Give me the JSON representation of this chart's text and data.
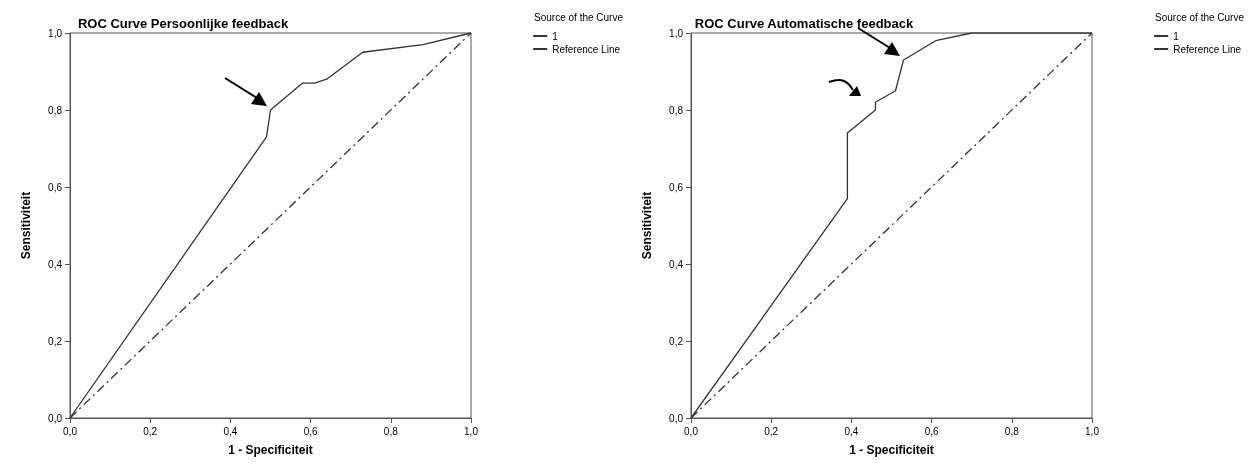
{
  "chart_data": [
    {
      "type": "line",
      "title": "ROC Curve Persoonlijke feedback",
      "xlabel": "1 - Specificiteit",
      "ylabel": "Sensitiviteit",
      "legend_title": "Source of the Curve",
      "legend": "top right",
      "grid": false,
      "marker": "none",
      "xlim": [
        0,
        1
      ],
      "ylim": [
        0,
        1
      ],
      "xticks": [
        {
          "value": 0,
          "label": "0,0"
        },
        {
          "value": 0.2,
          "label": "0,2"
        },
        {
          "value": 0.4,
          "label": "0,4"
        },
        {
          "value": 0.6,
          "label": "0,6"
        },
        {
          "value": 0.8,
          "label": "0,8"
        },
        {
          "value": 1,
          "label": "1,0"
        }
      ],
      "yticks": [
        {
          "value": 0,
          "label": "0,0"
        },
        {
          "value": 0.2,
          "label": "0,2"
        },
        {
          "value": 0.4,
          "label": "0,4"
        },
        {
          "value": 0.6,
          "label": "0,6"
        },
        {
          "value": 0.8,
          "label": "0,8"
        },
        {
          "value": 1,
          "label": "1,0"
        }
      ],
      "series": [
        {
          "name": "1",
          "color": "#333333",
          "line_style": "solid",
          "x": [
            0,
            0.49,
            0.5,
            0.58,
            0.61,
            0.64,
            0.73,
            0.88,
            1
          ],
          "values": [
            0,
            0.73,
            0.8,
            0.87,
            0.87,
            0.88,
            0.95,
            0.97,
            1
          ]
        },
        {
          "name": "Reference Line",
          "color": "#333333",
          "line_style": "dashed",
          "x": [
            0,
            1
          ],
          "values": [
            0,
            1
          ]
        }
      ]
    },
    {
      "type": "line",
      "title": "ROC Curve Automatische feedback",
      "xlabel": "1 - Specificiteit",
      "ylabel": "Sensitiviteit",
      "legend_title": "Source of the Curve",
      "legend": "top right",
      "grid": false,
      "marker": "none",
      "xlim": [
        0,
        1
      ],
      "ylim": [
        0,
        1
      ],
      "xticks": [
        {
          "value": 0,
          "label": "0,0"
        },
        {
          "value": 0.2,
          "label": "0,2"
        },
        {
          "value": 0.4,
          "label": "0,4"
        },
        {
          "value": 0.6,
          "label": "0,6"
        },
        {
          "value": 0.8,
          "label": "0,8"
        },
        {
          "value": 1,
          "label": "1,0"
        }
      ],
      "yticks": [
        {
          "value": 0,
          "label": "0,0"
        },
        {
          "value": 0.2,
          "label": "0,2"
        },
        {
          "value": 0.4,
          "label": "0,4"
        },
        {
          "value": 0.6,
          "label": "0,6"
        },
        {
          "value": 0.8,
          "label": "0,8"
        },
        {
          "value": 1,
          "label": "1,0"
        }
      ],
      "series": [
        {
          "name": "1",
          "color": "#333333",
          "line_style": "solid",
          "x": [
            0,
            0.39,
            0.39,
            0.46,
            0.46,
            0.51,
            0.53,
            0.61,
            0.7,
            1
          ],
          "values": [
            0,
            0.57,
            0.74,
            0.8,
            0.82,
            0.85,
            0.93,
            0.98,
            1,
            1
          ]
        },
        {
          "name": "Reference Line",
          "color": "#333333",
          "line_style": "dashed",
          "x": [
            0,
            1
          ],
          "values": [
            0,
            1
          ]
        }
      ]
    }
  ]
}
